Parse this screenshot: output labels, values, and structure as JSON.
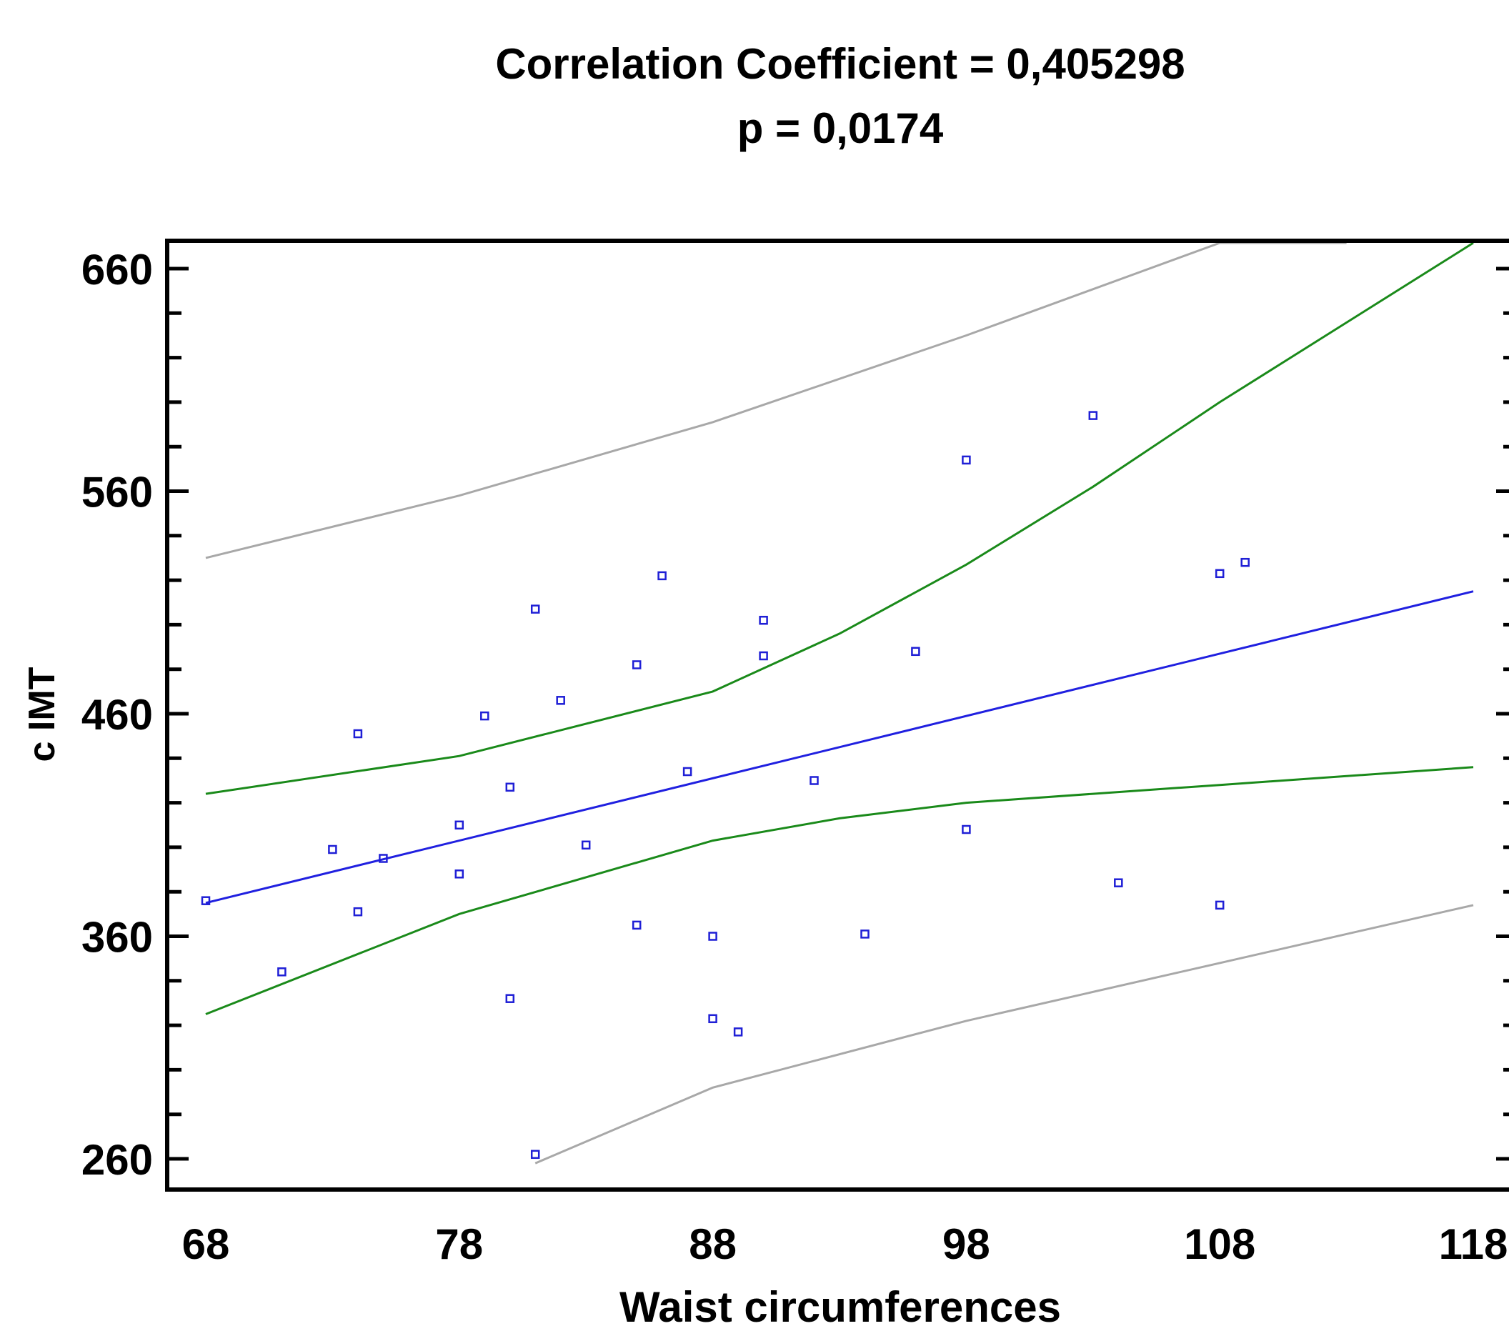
{
  "chart_data": {
    "type": "scatter",
    "title": "Correlation Coefficient = 0,405298",
    "subtitle": "p = 0,0174",
    "xlabel": "Waist circumferences",
    "ylabel": "c IMT",
    "xlim": [
      68,
      118
    ],
    "ylim": [
      260,
      660
    ],
    "xticks": [
      "68",
      "78",
      "88",
      "98",
      "108",
      "118"
    ],
    "yticks": [
      "260",
      "360",
      "460",
      "560",
      "660"
    ],
    "grid": false,
    "legend": "none",
    "points_color": "#1f1fd6",
    "regression_color": "#2020e0",
    "confidence_color": "#1a8a1a",
    "prediction_color": "#a8a8a8",
    "x": [
      68,
      71,
      73,
      74,
      74,
      75,
      78,
      78,
      79,
      80,
      80,
      81,
      81,
      82,
      83,
      85,
      85,
      86,
      87,
      88,
      88,
      89,
      90,
      90,
      92,
      94,
      96,
      98,
      98,
      103,
      104,
      108,
      108,
      109
    ],
    "y": [
      376,
      344,
      399,
      371,
      451,
      395,
      388,
      410,
      459,
      332,
      427,
      507,
      262,
      466,
      401,
      365,
      482,
      522,
      434,
      360,
      323,
      317,
      502,
      486,
      430,
      361,
      488,
      408,
      574,
      594,
      384,
      374,
      523,
      528
    ],
    "regression": {
      "x": [
        68,
        118
      ],
      "y": [
        375,
        515
      ]
    },
    "confidence_upper": {
      "x": [
        68,
        78,
        88,
        93,
        98,
        103,
        108,
        118
      ],
      "y": [
        424,
        441,
        470,
        496,
        527,
        562,
        600,
        684
      ]
    },
    "confidence_lower": {
      "x": [
        68,
        78,
        88,
        93,
        98,
        103,
        108,
        118
      ],
      "y": [
        325,
        370,
        403,
        413,
        420,
        424,
        428,
        436
      ]
    },
    "prediction_upper": {
      "x": [
        68,
        78,
        88,
        98,
        108,
        113
      ],
      "y": [
        530,
        558,
        591,
        630,
        676,
        703
      ]
    },
    "prediction_lower": {
      "x": [
        81,
        88,
        98,
        108,
        118
      ],
      "y": [
        258,
        292,
        322,
        348,
        374
      ]
    }
  }
}
